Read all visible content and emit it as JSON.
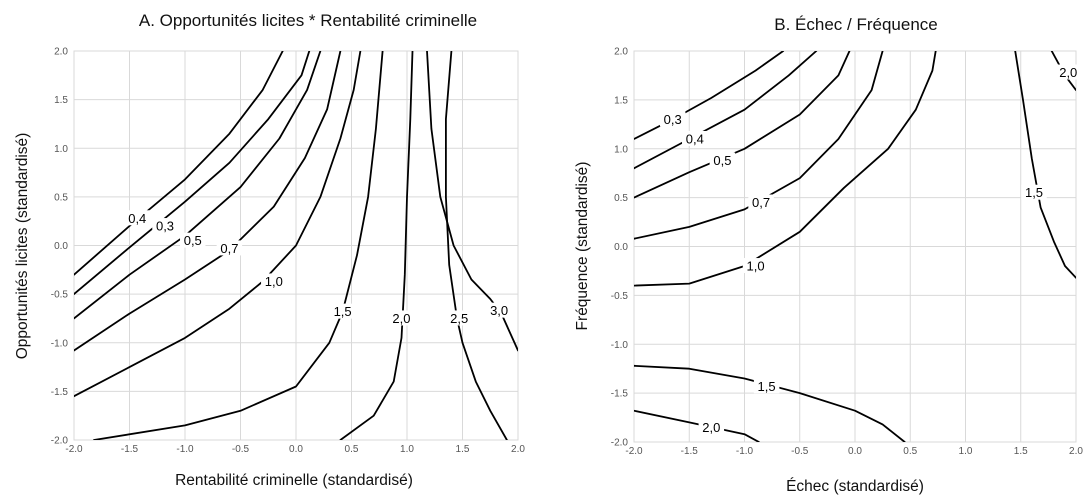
{
  "chart_data": [
    {
      "type": "line",
      "chart_kind": "contour",
      "title": "A. Opportunités licites * Rentabilité criminelle",
      "xlabel": "Rentabilité criminelle (standardisé)",
      "ylabel": "Opportunités licites (standardisé)",
      "xlim": [
        -2.0,
        2.0
      ],
      "ylim": [
        -2.0,
        2.0
      ],
      "x_ticks": [
        "-2.0",
        "-1.5",
        "-1.0",
        "-0.5",
        "0.0",
        "0.5",
        "1.0",
        "1.5",
        "2.0"
      ],
      "y_ticks": [
        "-2.0",
        "-1.5",
        "-1.0",
        "-0.5",
        "0.0",
        "0.5",
        "1.0",
        "1.5",
        "2.0"
      ],
      "grid": true,
      "series": [
        {
          "label": "0,4",
          "label_at": [
            -1.43,
            0.28
          ],
          "points": [
            [
              -2.0,
              -0.3
            ],
            [
              -1.5,
              0.2
            ],
            [
              -1.0,
              0.68
            ],
            [
              -0.6,
              1.15
            ],
            [
              -0.3,
              1.6
            ],
            [
              -0.12,
              2.0
            ]
          ]
        },
        {
          "label": "0,3",
          "label_at": [
            -1.18,
            0.2
          ],
          "points": [
            [
              -2.0,
              -0.5
            ],
            [
              -1.5,
              -0.02
            ],
            [
              -1.0,
              0.45
            ],
            [
              -0.6,
              0.85
            ],
            [
              -0.25,
              1.3
            ],
            [
              0.05,
              1.75
            ],
            [
              0.12,
              2.0
            ]
          ]
        },
        {
          "label": "0,5",
          "label_at": [
            -0.93,
            0.05
          ],
          "points": [
            [
              -2.0,
              -0.75
            ],
            [
              -1.5,
              -0.3
            ],
            [
              -1.0,
              0.1
            ],
            [
              -0.5,
              0.6
            ],
            [
              -0.15,
              1.1
            ],
            [
              0.1,
              1.6
            ],
            [
              0.22,
              2.0
            ]
          ]
        },
        {
          "label": "0,7",
          "label_at": [
            -0.6,
            -0.03
          ],
          "points": [
            [
              -2.0,
              -1.08
            ],
            [
              -1.5,
              -0.7
            ],
            [
              -1.0,
              -0.35
            ],
            [
              -0.6,
              -0.05
            ],
            [
              -0.2,
              0.4
            ],
            [
              0.08,
              0.9
            ],
            [
              0.28,
              1.4
            ],
            [
              0.4,
              2.0
            ]
          ]
        },
        {
          "label": "1,0",
          "label_at": [
            -0.2,
            -0.37
          ],
          "points": [
            [
              -2.0,
              -1.55
            ],
            [
              -1.5,
              -1.25
            ],
            [
              -1.0,
              -0.95
            ],
            [
              -0.6,
              -0.65
            ],
            [
              -0.3,
              -0.37
            ],
            [
              0.0,
              0.0
            ],
            [
              0.22,
              0.5
            ],
            [
              0.4,
              1.1
            ],
            [
              0.52,
              1.6
            ],
            [
              0.58,
              2.0
            ]
          ]
        },
        {
          "label": "1,5",
          "label_at": [
            0.42,
            -0.68
          ],
          "points": [
            [
              -1.82,
              -2.0
            ],
            [
              -1.0,
              -1.85
            ],
            [
              -0.5,
              -1.7
            ],
            [
              0.0,
              -1.45
            ],
            [
              0.3,
              -1.0
            ],
            [
              0.42,
              -0.68
            ],
            [
              0.55,
              -0.1
            ],
            [
              0.65,
              0.5
            ],
            [
              0.72,
              1.2
            ],
            [
              0.78,
              2.0
            ]
          ]
        },
        {
          "label": "2,0",
          "label_at": [
            0.95,
            -0.75
          ],
          "points": [
            [
              0.4,
              -2.0
            ],
            [
              0.7,
              -1.75
            ],
            [
              0.88,
              -1.4
            ],
            [
              0.95,
              -0.95
            ],
            [
              0.98,
              -0.3
            ],
            [
              1.0,
              0.5
            ],
            [
              1.03,
              1.3
            ],
            [
              1.05,
              2.0
            ]
          ]
        },
        {
          "label": "2,5",
          "label_at": [
            1.47,
            -0.75
          ],
          "points": [
            [
              1.4,
              2.0
            ],
            [
              1.35,
              1.3
            ],
            [
              1.35,
              0.5
            ],
            [
              1.38,
              -0.2
            ],
            [
              1.45,
              -0.75
            ],
            [
              1.5,
              -1.0
            ],
            [
              1.62,
              -1.4
            ],
            [
              1.75,
              -1.7
            ],
            [
              1.9,
              -2.0
            ]
          ]
        },
        {
          "label": "3,0",
          "label_at": [
            1.83,
            -0.67
          ],
          "points": [
            [
              1.18,
              2.0
            ],
            [
              1.22,
              1.2
            ],
            [
              1.3,
              0.5
            ],
            [
              1.42,
              0.0
            ],
            [
              1.58,
              -0.35
            ],
            [
              1.75,
              -0.55
            ],
            [
              1.85,
              -0.7
            ],
            [
              2.0,
              -1.08
            ]
          ]
        }
      ]
    },
    {
      "type": "line",
      "chart_kind": "contour",
      "title": "B. Échec / Fréquence",
      "xlabel": "Échec (standardisé)",
      "ylabel": "Fréquence (standardisé)",
      "xlim": [
        -2.0,
        2.0
      ],
      "ylim": [
        -2.0,
        2.0
      ],
      "x_ticks": [
        "-2.0",
        "-1.5",
        "-1.0",
        "-0.5",
        "0.0",
        "0.5",
        "1.0",
        "1.5",
        "2.0"
      ],
      "y_ticks": [
        "-2.0",
        "-1.5",
        "-1.0",
        "-0.5",
        "0.0",
        "0.5",
        "1.0",
        "1.5",
        "2.0"
      ],
      "grid": true,
      "series": [
        {
          "label": "0,3",
          "label_at": [
            -1.65,
            1.3
          ],
          "points": [
            [
              -2.0,
              1.1
            ],
            [
              -1.65,
              1.3
            ],
            [
              -1.3,
              1.52
            ],
            [
              -0.9,
              1.8
            ],
            [
              -0.65,
              2.0
            ]
          ]
        },
        {
          "label": "0,4",
          "label_at": [
            -1.45,
            1.1
          ],
          "points": [
            [
              -2.0,
              0.8
            ],
            [
              -1.5,
              1.1
            ],
            [
              -1.0,
              1.4
            ],
            [
              -0.6,
              1.75
            ],
            [
              -0.35,
              2.0
            ]
          ]
        },
        {
          "label": "0,5",
          "label_at": [
            -1.2,
            0.88
          ],
          "points": [
            [
              -2.0,
              0.5
            ],
            [
              -1.5,
              0.76
            ],
            [
              -1.0,
              1.0
            ],
            [
              -0.5,
              1.35
            ],
            [
              -0.15,
              1.75
            ],
            [
              -0.05,
              2.0
            ]
          ]
        },
        {
          "label": "0,7",
          "label_at": [
            -0.85,
            0.45
          ],
          "points": [
            [
              -2.0,
              0.08
            ],
            [
              -1.5,
              0.2
            ],
            [
              -1.0,
              0.38
            ],
            [
              -0.5,
              0.7
            ],
            [
              -0.15,
              1.1
            ],
            [
              0.15,
              1.6
            ],
            [
              0.25,
              2.0
            ]
          ]
        },
        {
          "label": "1,0",
          "label_at": [
            -0.9,
            -0.2
          ],
          "points": [
            [
              -2.0,
              -0.4
            ],
            [
              -1.5,
              -0.38
            ],
            [
              -1.0,
              -0.2
            ],
            [
              -0.5,
              0.15
            ],
            [
              -0.1,
              0.6
            ],
            [
              0.3,
              1.0
            ],
            [
              0.55,
              1.4
            ],
            [
              0.7,
              1.8
            ],
            [
              0.73,
              2.0
            ]
          ]
        },
        {
          "label": "1,5",
          "label_at": [
            1.62,
            0.55
          ],
          "points": [
            [
              1.45,
              2.0
            ],
            [
              1.52,
              1.5
            ],
            [
              1.6,
              0.9
            ],
            [
              1.68,
              0.4
            ],
            [
              1.8,
              0.05
            ],
            [
              1.9,
              -0.2
            ],
            [
              2.0,
              -0.32
            ]
          ]
        },
        {
          "label": "2,0",
          "label_at": [
            1.93,
            1.78
          ],
          "points": [
            [
              1.78,
              2.0
            ],
            [
              1.9,
              1.75
            ],
            [
              2.0,
              1.6
            ]
          ]
        },
        {
          "label": "1,5",
          "label_at": [
            -0.8,
            -1.43
          ],
          "points": [
            [
              -2.0,
              -1.22
            ],
            [
              -1.5,
              -1.25
            ],
            [
              -1.0,
              -1.35
            ],
            [
              -0.5,
              -1.5
            ],
            [
              0.0,
              -1.68
            ],
            [
              0.25,
              -1.82
            ],
            [
              0.45,
              -2.0
            ]
          ]
        },
        {
          "label": "2,0",
          "label_at": [
            -1.3,
            -1.85
          ],
          "points": [
            [
              -2.0,
              -1.68
            ],
            [
              -1.5,
              -1.8
            ],
            [
              -1.0,
              -1.92
            ],
            [
              -0.87,
              -2.0
            ]
          ]
        }
      ]
    }
  ]
}
